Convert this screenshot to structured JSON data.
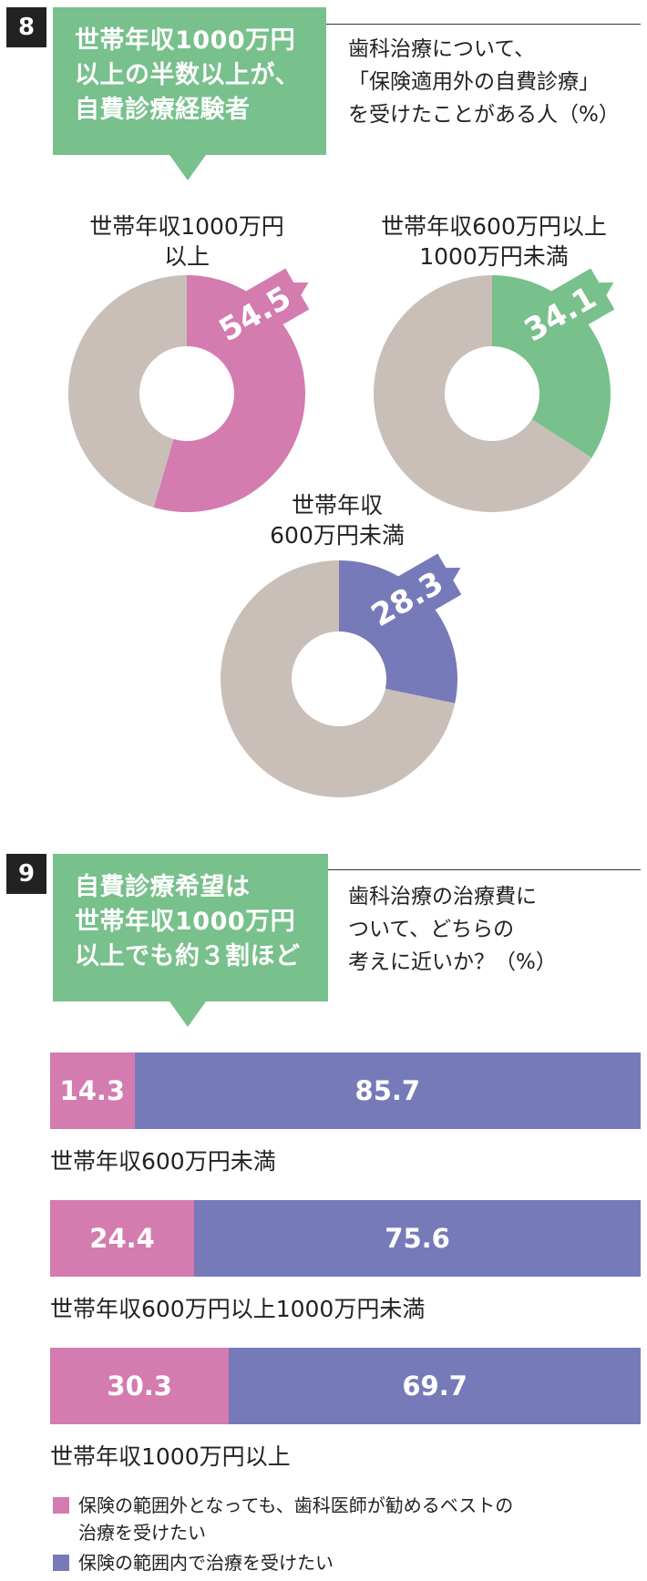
{
  "colors": {
    "green": "#78c08c",
    "pink": "#d47bb0",
    "purple": "#777ab8",
    "gray": "#c9bfb8",
    "dark": "#222222"
  },
  "section8": {
    "number": "8",
    "headline": [
      "世帯年収1000万円",
      "以上の半数以上が、",
      "自費診療経験者"
    ],
    "subtitle": [
      "歯科治療について、",
      "「保険適用外の自費診療」",
      "を受けたことがある人（%）"
    ]
  },
  "section9": {
    "number": "9",
    "headline": [
      "自費診療希望は",
      "世帯年収1000万円",
      "以上でも約３割ほど"
    ],
    "subtitle": [
      "歯科治療の治療費に",
      "ついて、どちらの",
      "考えに近いか？（%）"
    ]
  },
  "chart_data": [
    {
      "type": "pie",
      "variant": "donut",
      "series": [
        {
          "label_lines": [
            "世帯年収1000万円",
            "以上"
          ],
          "value": 54.5,
          "value_label": "54.5",
          "color": "#d47bb0"
        },
        {
          "label_lines": [
            "世帯年収600万円以上",
            "1000万円未満"
          ],
          "value": 34.1,
          "value_label": "34.1",
          "color": "#78c08c"
        },
        {
          "label_lines": [
            "世帯年収",
            "600万円未満"
          ],
          "value": 28.3,
          "value_label": "28.3",
          "color": "#777ab8"
        }
      ],
      "remainder_color": "#c9bfb8"
    },
    {
      "type": "bar",
      "orientation": "horizontal",
      "stacked": true,
      "xlim": [
        0,
        100
      ],
      "categories": [
        "世帯年収600万円未満",
        "世帯年収600万円以上1000万円未満",
        "世帯年収1000万円以上"
      ],
      "series": [
        {
          "name": "保険の範囲外となっても、歯科医師が勧めるベストの治療を受けたい",
          "color": "#d47bb0",
          "values": [
            14.3,
            24.4,
            30.3
          ],
          "labels": [
            "14.3",
            "24.4",
            "30.3"
          ]
        },
        {
          "name": "保険の範囲内で治療を受けたい",
          "color": "#777ab8",
          "values": [
            85.7,
            75.6,
            69.7
          ],
          "labels": [
            "85.7",
            "75.6",
            "69.7"
          ]
        }
      ],
      "legend": [
        {
          "lines": [
            "保険の範囲外となっても、歯科医師が勧めるベストの",
            "治療を受けたい"
          ],
          "color": "#d47bb0"
        },
        {
          "lines": [
            "保険の範囲内で治療を受けたい"
          ],
          "color": "#777ab8"
        }
      ]
    }
  ]
}
